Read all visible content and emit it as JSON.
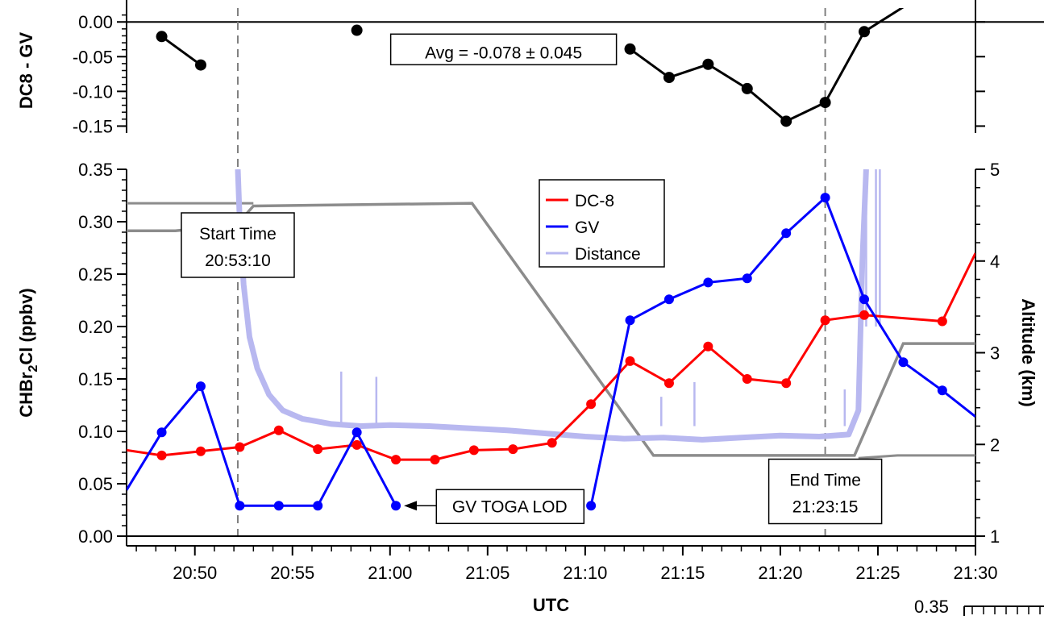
{
  "chart_data": [
    {
      "type": "line",
      "panel": "top",
      "ylabel": "DC8 - GV",
      "ylim": [
        -0.16,
        0.02
      ],
      "yticks": [
        0.0,
        -0.05,
        -0.1,
        -0.15
      ],
      "ytick_labels": [
        "0.00",
        "-0.05",
        "-0.10",
        "-0.15"
      ],
      "zero_line": 0.0,
      "series": [
        {
          "color": "#000000",
          "marker": "circle",
          "points": [
            {
              "t": 48.3,
              "y": -0.021
            },
            {
              "t": 50.3,
              "y": -0.062
            },
            {
              "t": null,
              "y": null
            },
            {
              "t": 58.3,
              "y": -0.012
            },
            {
              "t": null,
              "y": null
            },
            {
              "t": 72.3,
              "y": -0.039
            },
            {
              "t": 74.3,
              "y": -0.08
            },
            {
              "t": 76.3,
              "y": -0.061
            },
            {
              "t": 78.3,
              "y": -0.096
            },
            {
              "t": 80.3,
              "y": -0.143
            },
            {
              "t": 82.3,
              "y": -0.116
            },
            {
              "t": 84.3,
              "y": -0.014
            },
            {
              "t": 86.5,
              "y": 0.025
            }
          ]
        }
      ],
      "annotations": [
        {
          "text": "Avg = -0.078 ± 0.045",
          "t": 60.2,
          "y": -0.05
        }
      ]
    },
    {
      "type": "line",
      "panel": "bottom",
      "xlabel": "UTC",
      "ylabel": "CHBr2Cl (ppbv)",
      "ylabel_parts": {
        "base": "CHBr",
        "sub": "2",
        "rest": "Cl (ppbv)"
      },
      "y2label": "Altitude (km)",
      "xlim": [
        46.5,
        90.0
      ],
      "ylim": [
        0.0,
        0.35
      ],
      "y2lim": [
        1,
        5
      ],
      "x_tick_values": [
        50,
        55,
        60,
        65,
        70,
        75,
        80,
        85,
        90
      ],
      "x_tick_labels": [
        "20:50",
        "20:55",
        "21:00",
        "21:05",
        "21:10",
        "21:15",
        "21:20",
        "21:25",
        "21:30"
      ],
      "yticks": [
        0.0,
        0.05,
        0.1,
        0.15,
        0.2,
        0.25,
        0.3,
        0.35
      ],
      "ytick_labels": [
        "0.00",
        "0.05",
        "0.10",
        "0.15",
        "0.20",
        "0.25",
        "0.30",
        "0.35"
      ],
      "y2ticks": [
        1,
        2,
        3,
        4,
        5
      ],
      "y2tick_labels": [
        "1",
        "2",
        "3",
        "4",
        "5"
      ],
      "legend": {
        "placement": "top-center",
        "entries": [
          {
            "label": "DC-8",
            "color": "#ff0000"
          },
          {
            "label": "GV",
            "color": "#0000ff"
          },
          {
            "label": "Distance",
            "color": "#b8b8f0"
          }
        ]
      },
      "series": [
        {
          "name": "DC-8",
          "color": "#ff0000",
          "axis": "left",
          "marker": "circle",
          "points": [
            {
              "t": 46.5,
              "y": 0.082
            },
            {
              "t": 48.3,
              "y": 0.077
            },
            {
              "t": 50.3,
              "y": 0.081
            },
            {
              "t": 52.3,
              "y": 0.085
            },
            {
              "t": 54.3,
              "y": 0.101
            },
            {
              "t": 56.3,
              "y": 0.083
            },
            {
              "t": 58.3,
              "y": 0.087
            },
            {
              "t": 60.3,
              "y": 0.073
            },
            {
              "t": 62.3,
              "y": 0.073
            },
            {
              "t": 64.3,
              "y": 0.082
            },
            {
              "t": 66.3,
              "y": 0.083
            },
            {
              "t": 68.3,
              "y": 0.089
            },
            {
              "t": 70.3,
              "y": 0.126
            },
            {
              "t": 72.3,
              "y": 0.167
            },
            {
              "t": 74.3,
              "y": 0.146
            },
            {
              "t": 76.3,
              "y": 0.181
            },
            {
              "t": 78.3,
              "y": 0.15
            },
            {
              "t": 80.3,
              "y": 0.146
            },
            {
              "t": 82.3,
              "y": 0.206
            },
            {
              "t": 84.3,
              "y": 0.211
            },
            {
              "t": 88.3,
              "y": 0.205
            },
            {
              "t": 90.0,
              "y": 0.27
            }
          ]
        },
        {
          "name": "GV",
          "color": "#0000ff",
          "axis": "left",
          "marker": "circle",
          "points": [
            {
              "t": 46.5,
              "y": 0.044
            },
            {
              "t": 48.3,
              "y": 0.099
            },
            {
              "t": 50.3,
              "y": 0.143
            },
            {
              "t": 52.3,
              "y": 0.029
            },
            {
              "t": 54.3,
              "y": 0.029
            },
            {
              "t": 56.3,
              "y": 0.029
            },
            {
              "t": 58.3,
              "y": 0.099
            },
            {
              "t": 60.3,
              "y": 0.029
            },
            {
              "t": null,
              "y": null
            },
            {
              "t": 70.3,
              "y": 0.029
            },
            {
              "t": 72.3,
              "y": 0.206
            },
            {
              "t": 74.3,
              "y": 0.226
            },
            {
              "t": 76.3,
              "y": 0.242
            },
            {
              "t": 78.3,
              "y": 0.246
            },
            {
              "t": 80.3,
              "y": 0.289
            },
            {
              "t": 82.3,
              "y": 0.323
            },
            {
              "t": 84.3,
              "y": 0.226
            },
            {
              "t": 86.3,
              "y": 0.166
            },
            {
              "t": 88.3,
              "y": 0.139
            },
            {
              "t": 90.0,
              "y": 0.114
            }
          ]
        },
        {
          "name": "Distance",
          "color": "#b8b8f0",
          "axis": "left",
          "points": [
            {
              "t": 52.2,
              "y": 0.35
            },
            {
              "t": 52.3,
              "y": 0.3
            },
            {
              "t": 52.5,
              "y": 0.24
            },
            {
              "t": 52.8,
              "y": 0.19
            },
            {
              "t": 53.2,
              "y": 0.16
            },
            {
              "t": 53.8,
              "y": 0.135
            },
            {
              "t": 54.5,
              "y": 0.12
            },
            {
              "t": 55.5,
              "y": 0.112
            },
            {
              "t": 57.0,
              "y": 0.107
            },
            {
              "t": 58.5,
              "y": 0.105
            },
            {
              "t": 60.0,
              "y": 0.106
            },
            {
              "t": 62.0,
              "y": 0.105
            },
            {
              "t": 64.0,
              "y": 0.103
            },
            {
              "t": 66.0,
              "y": 0.101
            },
            {
              "t": 68.0,
              "y": 0.098
            },
            {
              "t": 70.0,
              "y": 0.095
            },
            {
              "t": 72.0,
              "y": 0.093
            },
            {
              "t": 74.0,
              "y": 0.094
            },
            {
              "t": 76.0,
              "y": 0.092
            },
            {
              "t": 78.0,
              "y": 0.094
            },
            {
              "t": 80.0,
              "y": 0.096
            },
            {
              "t": 82.0,
              "y": 0.095
            },
            {
              "t": 83.5,
              "y": 0.097
            },
            {
              "t": 84.0,
              "y": 0.12
            },
            {
              "t": 84.2,
              "y": 0.26
            },
            {
              "t": 84.4,
              "y": 0.35
            }
          ],
          "spikes": [
            {
              "t": 57.5,
              "y": 0.157
            },
            {
              "t": 59.3,
              "y": 0.152
            },
            {
              "t": 73.9,
              "y": 0.133
            },
            {
              "t": 75.6,
              "y": 0.147
            },
            {
              "t": 83.3,
              "y": 0.14
            }
          ]
        },
        {
          "name": "Altitude",
          "color": "#8c8c8c",
          "axis": "right",
          "points": [
            {
              "t": 46.5,
              "y": 4.33
            },
            {
              "t": 49.0,
              "y": 4.33
            },
            {
              "t": 50.5,
              "y": 4.36
            },
            {
              "t": 51.0,
              "y": 4.3
            },
            {
              "t": 52.0,
              "y": 4.36
            },
            {
              "t": 53.0,
              "y": 4.6
            },
            {
              "t": 64.2,
              "y": 4.63
            },
            {
              "t": 73.5,
              "y": 1.88
            },
            {
              "t": 83.8,
              "y": 1.88
            },
            {
              "t": 86.3,
              "y": 3.1
            },
            {
              "t": 90.0,
              "y": 3.1
            }
          ],
          "secondary_points": [
            {
              "t": 46.5,
              "y": 4.63
            },
            {
              "t": 53.0,
              "y": 4.63
            }
          ],
          "tail_points": [
            {
              "t": 84.0,
              "y": 1.85
            },
            {
              "t": 86.0,
              "y": 1.88
            },
            {
              "t": 90.0,
              "y": 1.88
            }
          ]
        }
      ],
      "annotations": [
        {
          "text": "Start Time",
          "line2": "20:53:10",
          "t": 52.2,
          "y": 0.27
        },
        {
          "text": "End Time",
          "line2": "21:23:15",
          "t": 82.3,
          "y": 0.035
        },
        {
          "text": "GV TOGA LOD",
          "t": 62.5,
          "y": 0.029,
          "arrow_to_t": 60.3,
          "arrow_to_y": 0.029
        }
      ],
      "reference_lines": [
        {
          "t": 52.2,
          "style": "dashed",
          "color": "#808080"
        },
        {
          "t": 82.3,
          "style": "dashed",
          "color": "#808080"
        }
      ]
    }
  ],
  "corner_fragment": {
    "text": "0.35"
  }
}
